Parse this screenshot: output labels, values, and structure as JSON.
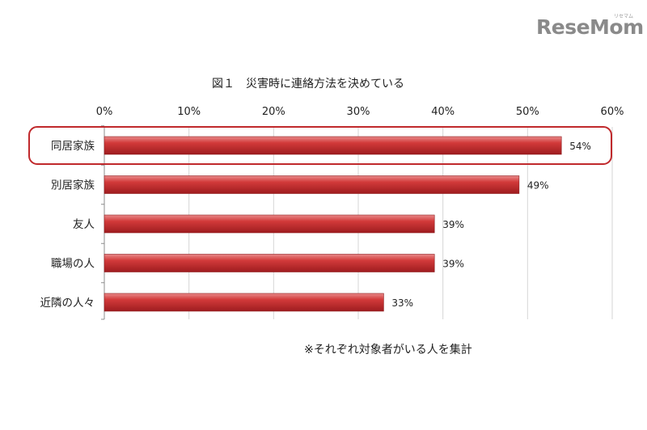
{
  "logo": {
    "text": "ReseMom",
    "sub": "リセマム"
  },
  "chart_data": {
    "type": "bar",
    "orientation": "horizontal",
    "title": "図１　災害時に連絡方法を決めている",
    "categories": [
      "同居家族",
      "別居家族",
      "友人",
      "職場の人",
      "近隣の人々"
    ],
    "values": [
      54,
      49,
      39,
      39,
      33
    ],
    "value_labels": [
      "54%",
      "49%",
      "39%",
      "39%",
      "33%"
    ],
    "xlim": [
      0,
      60
    ],
    "ticks": [
      "0%",
      "10%",
      "20%",
      "30%",
      "40%",
      "50%",
      "60%"
    ],
    "grid": true,
    "bar_color": "#c0292c",
    "highlight_category": "同居家族",
    "highlight_color": "#c0292c",
    "note": "※それぞれ対象者がいる人を集計"
  }
}
